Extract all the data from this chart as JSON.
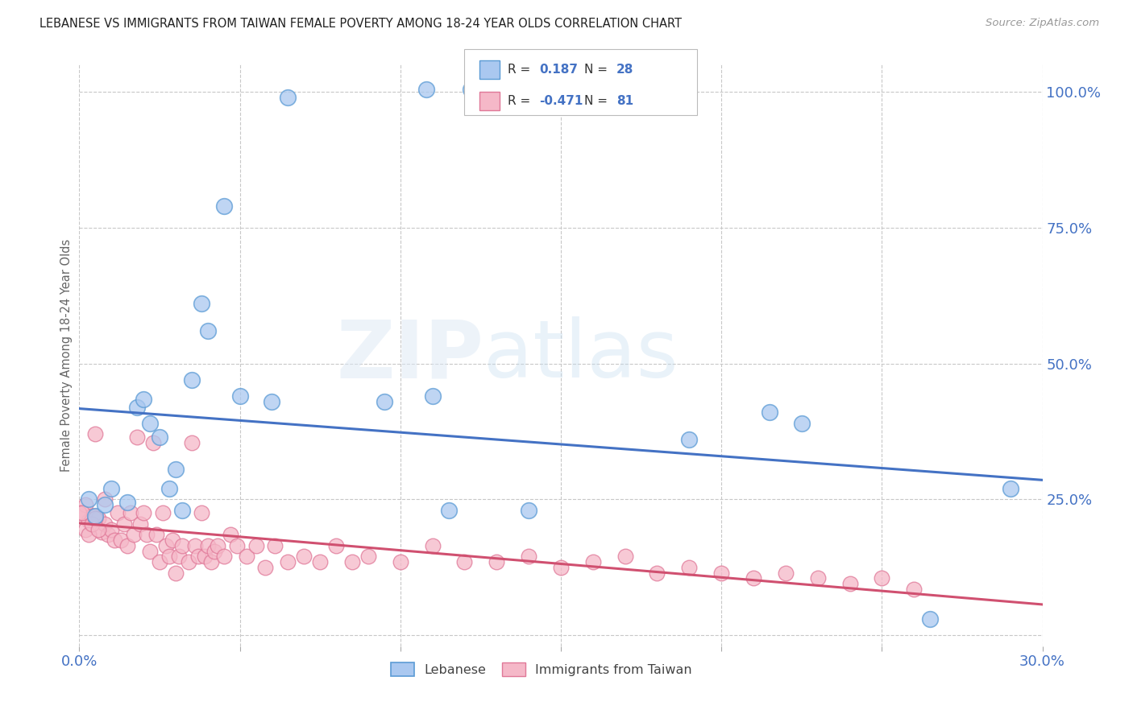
{
  "title": "LEBANESE VS IMMIGRANTS FROM TAIWAN FEMALE POVERTY AMONG 18-24 YEAR OLDS CORRELATION CHART",
  "source": "Source: ZipAtlas.com",
  "ylabel": "Female Poverty Among 18-24 Year Olds",
  "xlim": [
    0.0,
    0.3
  ],
  "ylim": [
    -0.02,
    1.05
  ],
  "x_ticks": [
    0.0,
    0.05,
    0.1,
    0.15,
    0.2,
    0.25,
    0.3
  ],
  "x_tick_labels": [
    "0.0%",
    "",
    "",
    "",
    "",
    "",
    "30.0%"
  ],
  "y_ticks": [
    0.0,
    0.25,
    0.5,
    0.75,
    1.0
  ],
  "y_tick_labels": [
    "",
    "25.0%",
    "50.0%",
    "75.0%",
    "100.0%"
  ],
  "background_color": "#ffffff",
  "grid_color": "#c8c8c8",
  "lebanese_R": 0.187,
  "lebanese_N": 28,
  "taiwan_R": -0.471,
  "taiwan_N": 81,
  "lebanese_color": "#aac8f0",
  "taiwan_color": "#f5b8c8",
  "lebanese_edge_color": "#5b9bd5",
  "taiwan_edge_color": "#e07898",
  "lebanese_line_color": "#4472c4",
  "taiwan_line_color": "#d05070",
  "lebanese_x": [
    0.003,
    0.005,
    0.008,
    0.01,
    0.015,
    0.018,
    0.02,
    0.022,
    0.025,
    0.028,
    0.03,
    0.032,
    0.035,
    0.038,
    0.04,
    0.045,
    0.05,
    0.06,
    0.065,
    0.095,
    0.115,
    0.14,
    0.19,
    0.215,
    0.225,
    0.265,
    0.29,
    0.11
  ],
  "lebanese_y": [
    0.25,
    0.22,
    0.24,
    0.27,
    0.245,
    0.42,
    0.435,
    0.39,
    0.365,
    0.27,
    0.305,
    0.23,
    0.47,
    0.61,
    0.56,
    0.79,
    0.44,
    0.43,
    0.99,
    0.43,
    0.23,
    0.23,
    0.36,
    0.41,
    0.39,
    0.03,
    0.27,
    0.44
  ],
  "taiwan_x": [
    0.001,
    0.002,
    0.003,
    0.004,
    0.005,
    0.005,
    0.006,
    0.007,
    0.008,
    0.008,
    0.009,
    0.01,
    0.011,
    0.012,
    0.013,
    0.014,
    0.015,
    0.016,
    0.017,
    0.018,
    0.019,
    0.02,
    0.021,
    0.022,
    0.023,
    0.024,
    0.025,
    0.026,
    0.027,
    0.028,
    0.029,
    0.03,
    0.031,
    0.032,
    0.034,
    0.035,
    0.036,
    0.037,
    0.038,
    0.039,
    0.04,
    0.041,
    0.042,
    0.043,
    0.045,
    0.047,
    0.049,
    0.052,
    0.055,
    0.058,
    0.061,
    0.065,
    0.07,
    0.075,
    0.08,
    0.085,
    0.09,
    0.1,
    0.11,
    0.12,
    0.13,
    0.14,
    0.15,
    0.16,
    0.17,
    0.18,
    0.19,
    0.2,
    0.21,
    0.22,
    0.23,
    0.24,
    0.25,
    0.26,
    0.0,
    0.001,
    0.002,
    0.003,
    0.004,
    0.005,
    0.006
  ],
  "taiwan_y": [
    0.22,
    0.24,
    0.21,
    0.22,
    0.22,
    0.37,
    0.215,
    0.19,
    0.205,
    0.25,
    0.185,
    0.195,
    0.175,
    0.225,
    0.175,
    0.205,
    0.165,
    0.225,
    0.185,
    0.365,
    0.205,
    0.225,
    0.185,
    0.155,
    0.355,
    0.185,
    0.135,
    0.225,
    0.165,
    0.145,
    0.175,
    0.115,
    0.145,
    0.165,
    0.135,
    0.355,
    0.165,
    0.145,
    0.225,
    0.145,
    0.165,
    0.135,
    0.155,
    0.165,
    0.145,
    0.185,
    0.165,
    0.145,
    0.165,
    0.125,
    0.165,
    0.135,
    0.145,
    0.135,
    0.165,
    0.135,
    0.145,
    0.135,
    0.165,
    0.135,
    0.135,
    0.145,
    0.125,
    0.135,
    0.145,
    0.115,
    0.125,
    0.115,
    0.105,
    0.115,
    0.105,
    0.095,
    0.105,
    0.085,
    0.225,
    0.225,
    0.195,
    0.185,
    0.205,
    0.215,
    0.195
  ]
}
